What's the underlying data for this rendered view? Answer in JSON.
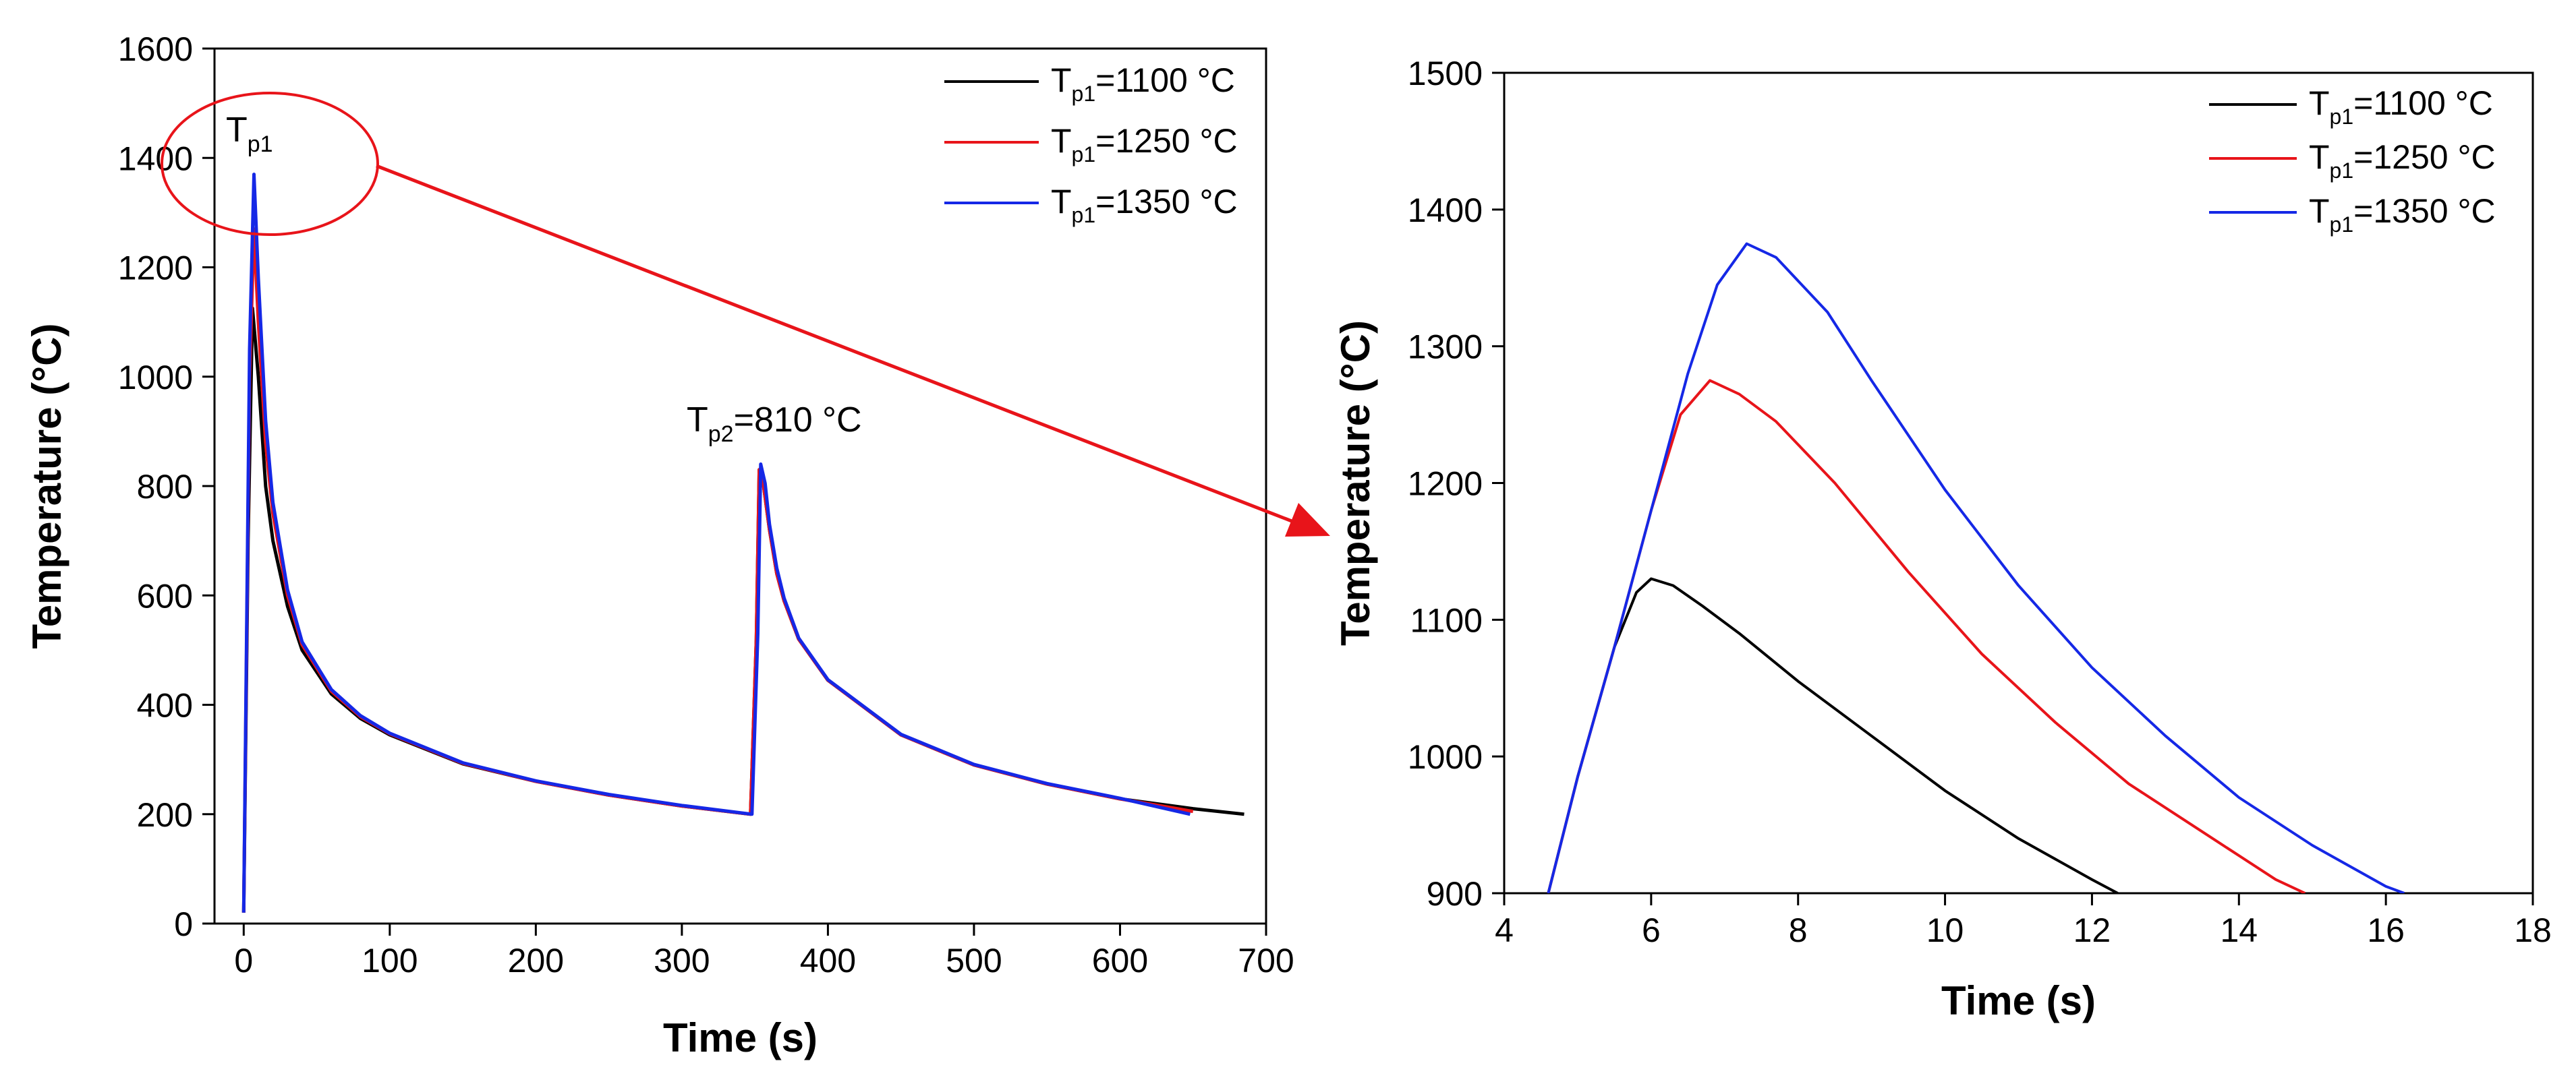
{
  "chart_data": [
    {
      "type": "line",
      "xlabel": "Time (s)",
      "ylabel": "Temperature (°C)",
      "xlim": [
        -20,
        700
      ],
      "ylim": [
        0,
        1600
      ],
      "xticks": [
        0,
        100,
        200,
        300,
        400,
        500,
        600,
        700
      ],
      "yticks": [
        0,
        200,
        400,
        600,
        800,
        1000,
        1200,
        1400,
        1600
      ],
      "legend_position": "top-right",
      "annotations": [
        {
          "base": "T",
          "sub": "p1",
          "suffix": ""
        },
        {
          "base": "T",
          "sub": "p2",
          "suffix": "=810 °C"
        }
      ],
      "series": [
        {
          "legend_base": "T",
          "legend_sub": "p1",
          "legend_suffix": "=1100 °C",
          "color": "#000000",
          "x": [
            0,
            3,
            6,
            10,
            15,
            20,
            30,
            40,
            60,
            80,
            100,
            150,
            200,
            250,
            300,
            347,
            351,
            353,
            356,
            360,
            365,
            370,
            380,
            400,
            450,
            500,
            550,
            600,
            650,
            685
          ],
          "y": [
            20,
            700,
            1125,
            1000,
            800,
            700,
            580,
            500,
            420,
            375,
            345,
            292,
            260,
            235,
            215,
            200,
            520,
            830,
            800,
            720,
            640,
            590,
            520,
            445,
            345,
            290,
            255,
            228,
            210,
            200
          ]
        },
        {
          "legend_base": "T",
          "legend_sub": "p1",
          "legend_suffix": "=1250 °C",
          "color": "#e8141a",
          "x": [
            0,
            4,
            7,
            10,
            15,
            20,
            30,
            40,
            60,
            80,
            100,
            150,
            200,
            250,
            300,
            347,
            351,
            353,
            356,
            360,
            365,
            370,
            380,
            400,
            450,
            500,
            550,
            600,
            650
          ],
          "y": [
            20,
            1000,
            1270,
            1100,
            880,
            750,
            600,
            510,
            425,
            378,
            347,
            293,
            260,
            235,
            215,
            200,
            520,
            830,
            800,
            720,
            640,
            590,
            520,
            445,
            345,
            290,
            255,
            228,
            205
          ]
        },
        {
          "legend_base": "T",
          "legend_sub": "p1",
          "legend_suffix": "=1350 °C",
          "color": "#1528e6",
          "x": [
            0,
            4,
            7,
            10,
            15,
            20,
            30,
            40,
            60,
            80,
            100,
            150,
            200,
            250,
            300,
            348,
            352,
            354,
            357,
            360,
            365,
            370,
            380,
            400,
            450,
            500,
            550,
            600,
            648
          ],
          "y": [
            20,
            1050,
            1370,
            1180,
            920,
            770,
            610,
            515,
            428,
            380,
            348,
            294,
            261,
            236,
            216,
            200,
            530,
            840,
            805,
            730,
            650,
            595,
            522,
            446,
            346,
            291,
            256,
            229,
            200
          ]
        }
      ]
    },
    {
      "type": "line",
      "xlabel": "Time (s)",
      "ylabel": "Temperature (°C)",
      "xlim": [
        4,
        18
      ],
      "ylim": [
        900,
        1500
      ],
      "xticks": [
        4,
        6,
        8,
        10,
        12,
        14,
        16,
        18
      ],
      "yticks": [
        900,
        1000,
        1100,
        1200,
        1300,
        1400,
        1500
      ],
      "legend_position": "top-right",
      "series": [
        {
          "legend_base": "T",
          "legend_sub": "p1",
          "legend_suffix": "=1100 °C",
          "color": "#000000",
          "x": [
            4.6,
            5.0,
            5.5,
            5.8,
            6.0,
            6.3,
            6.7,
            7.2,
            8.0,
            9.0,
            10.0,
            11.0,
            12.0,
            12.35
          ],
          "y": [
            900,
            985,
            1080,
            1120,
            1130,
            1125,
            1110,
            1090,
            1055,
            1015,
            975,
            940,
            910,
            900
          ]
        },
        {
          "legend_base": "T",
          "legend_sub": "p1",
          "legend_suffix": "=1250 °C",
          "color": "#e8141a",
          "x": [
            4.6,
            5.0,
            5.5,
            6.0,
            6.4,
            6.8,
            7.2,
            7.7,
            8.5,
            9.5,
            10.5,
            11.5,
            12.5,
            13.5,
            14.5,
            14.9
          ],
          "y": [
            900,
            985,
            1080,
            1180,
            1250,
            1275,
            1265,
            1245,
            1200,
            1135,
            1075,
            1025,
            980,
            945,
            910,
            900
          ]
        },
        {
          "legend_base": "T",
          "legend_sub": "p1",
          "legend_suffix": "=1350 °C",
          "color": "#1528e6",
          "x": [
            4.6,
            5.0,
            5.5,
            6.0,
            6.5,
            6.9,
            7.3,
            7.7,
            8.4,
            9.0,
            10.0,
            11.0,
            12.0,
            13.0,
            14.0,
            15.0,
            16.0,
            16.25
          ],
          "y": [
            900,
            985,
            1080,
            1180,
            1280,
            1345,
            1375,
            1365,
            1325,
            1275,
            1195,
            1125,
            1065,
            1015,
            970,
            935,
            905,
            900
          ]
        }
      ]
    }
  ]
}
